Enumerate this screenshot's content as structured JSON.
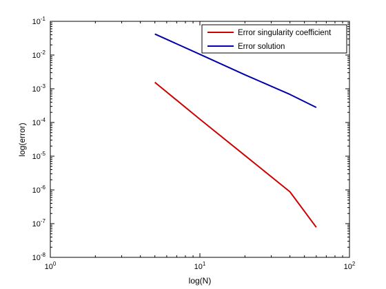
{
  "chart_data": {
    "type": "line",
    "title": "",
    "xlabel": "log(N)",
    "ylabel": "log(error)",
    "xscale": "log",
    "yscale": "log",
    "xlim": [
      1,
      100
    ],
    "ylim": [
      1e-08,
      0.1
    ],
    "x_ticks": [
      {
        "value": 1,
        "base": "10",
        "exp": "0"
      },
      {
        "value": 10,
        "base": "10",
        "exp": "1"
      },
      {
        "value": 100,
        "base": "10",
        "exp": "2"
      }
    ],
    "y_ticks": [
      {
        "value": 1e-08,
        "base": "10",
        "exp": "-8"
      },
      {
        "value": 1e-07,
        "base": "10",
        "exp": "-7"
      },
      {
        "value": 1e-06,
        "base": "10",
        "exp": "-6"
      },
      {
        "value": 1e-05,
        "base": "10",
        "exp": "-5"
      },
      {
        "value": 0.0001,
        "base": "10",
        "exp": "-4"
      },
      {
        "value": 0.001,
        "base": "10",
        "exp": "-3"
      },
      {
        "value": 0.01,
        "base": "10",
        "exp": "-2"
      },
      {
        "value": 0.1,
        "base": "10",
        "exp": "-1"
      }
    ],
    "grid": false,
    "legend_position": "top-right",
    "series": [
      {
        "name": "Error singularity coefficient",
        "color": "#cc0000",
        "x": [
          5,
          10,
          20,
          40,
          60
        ],
        "y": [
          0.00155,
          0.000125,
          1.05e-05,
          8.8e-07,
          7.8e-08
        ]
      },
      {
        "name": "Error solution",
        "color": "#0000aa",
        "x": [
          5,
          10,
          20,
          40,
          60
        ],
        "y": [
          0.042,
          0.0105,
          0.0026,
          0.00068,
          0.00028
        ]
      }
    ]
  }
}
